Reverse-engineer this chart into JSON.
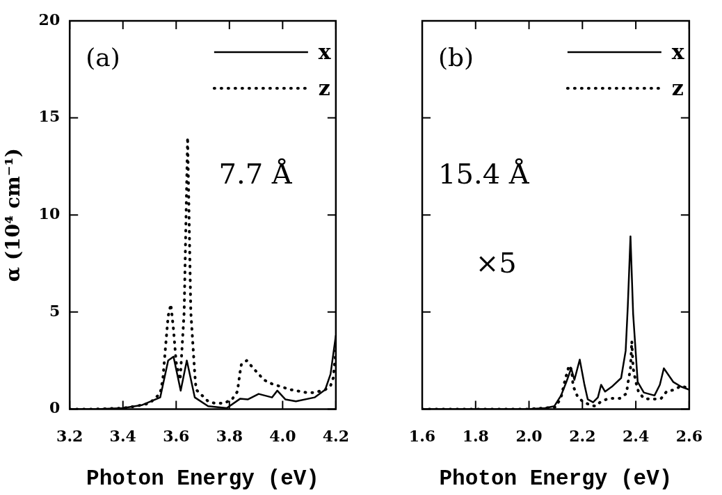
{
  "chart_data": [
    {
      "type": "line",
      "xlabel": "Photon Energy (eV)",
      "ylabel": "α (10⁴ cm⁻¹)",
      "annotations": [
        "(a)",
        "7.7 Å"
      ],
      "legend": "top right",
      "grid": false,
      "marker": "none",
      "xlim": [
        3.2,
        4.2
      ],
      "xticks": [
        3.2,
        3.4,
        3.6,
        3.8,
        {
          "value": 4,
          "label": "4.0"
        },
        4.2
      ],
      "ylim": [
        0,
        20
      ],
      "yticks": [
        0,
        5,
        10,
        15,
        20
      ],
      "series": [
        {
          "name": "x",
          "color": "#000000",
          "line_style": "solid",
          "x": [
            3.2,
            3.3,
            3.4,
            3.47,
            3.54,
            3.57,
            3.59,
            3.617,
            3.64,
            3.67,
            3.72,
            3.79,
            3.84,
            3.87,
            3.91,
            3.96,
            3.98,
            4.01,
            4.05,
            4.12,
            4.16,
            4.18,
            4.2
          ],
          "values": [
            0,
            0,
            0.05,
            0.2,
            0.6,
            2.5,
            2.7,
            0.95,
            2.5,
            0.6,
            0.15,
            0.05,
            0.53,
            0.5,
            0.78,
            0.6,
            0.95,
            0.5,
            0.4,
            0.6,
            1.0,
            1.8,
            3.8
          ]
        },
        {
          "name": "z",
          "color": "#000000",
          "line_style": "dotted",
          "x": [
            3.2,
            3.3,
            3.4,
            3.45,
            3.5,
            3.54,
            3.55,
            3.56,
            3.57,
            3.58,
            3.59,
            3.6,
            3.615,
            3.63,
            3.643,
            3.655,
            3.67,
            3.675,
            3.72,
            3.745,
            3.78,
            3.81,
            3.83,
            3.84,
            3.845,
            3.865,
            3.89,
            3.93,
            3.96,
            3.995,
            4.03,
            4.09,
            4.12,
            4.16,
            4.18,
            4.19,
            4.2
          ],
          "values": [
            0,
            0,
            0.05,
            0.15,
            0.3,
            0.8,
            1.55,
            3.2,
            4.8,
            5.4,
            4.1,
            2.4,
            1.5,
            5.0,
            14.0,
            5.0,
            1.8,
            1.0,
            0.4,
            0.3,
            0.3,
            0.5,
            0.9,
            1.9,
            2.3,
            2.5,
            2.1,
            1.5,
            1.3,
            1.15,
            1.0,
            0.85,
            0.85,
            1.0,
            1.2,
            1.6,
            3.0
          ]
        }
      ]
    },
    {
      "type": "line",
      "xlabel": "Photon Energy (eV)",
      "annotations": [
        "(b)",
        "15.4 Å",
        "×5"
      ],
      "legend": "top right",
      "grid": false,
      "marker": "none",
      "tick_labels": "x",
      "xlim": [
        1.6,
        2.6
      ],
      "xticks": [
        1.6,
        1.8,
        {
          "value": 2,
          "label": "2.0"
        },
        2.2,
        2.4,
        2.6
      ],
      "ylim": [
        0,
        20
      ],
      "yticks": [
        0,
        5,
        10,
        15,
        20
      ],
      "series": [
        {
          "name": "x",
          "color": "#000000",
          "line_style": "solid",
          "x": [
            1.6,
            1.8,
            2.0,
            2.06,
            2.095,
            2.12,
            2.14,
            2.158,
            2.17,
            2.19,
            2.207,
            2.22,
            2.24,
            2.258,
            2.27,
            2.285,
            2.31,
            2.345,
            2.362,
            2.37,
            2.38,
            2.39,
            2.407,
            2.43,
            2.47,
            2.49,
            2.505,
            2.54,
            2.57,
            2.6
          ],
          "values": [
            0,
            0,
            0,
            0.05,
            0.15,
            0.7,
            1.4,
            2.1,
            1.5,
            2.55,
            1.3,
            0.5,
            0.35,
            0.6,
            1.25,
            0.9,
            1.15,
            1.6,
            3.0,
            5.3,
            8.9,
            4.9,
            1.4,
            0.85,
            0.7,
            1.25,
            2.1,
            1.4,
            1.15,
            1.0
          ]
        },
        {
          "name": "z",
          "color": "#000000",
          "line_style": "dotted",
          "x": [
            1.6,
            1.8,
            2.0,
            2.1,
            2.12,
            2.135,
            2.15,
            2.16,
            2.165,
            2.18,
            2.2,
            2.23,
            2.25,
            2.27,
            2.3,
            2.34,
            2.365,
            2.37,
            2.38,
            2.385,
            2.39,
            2.4,
            2.41,
            2.43,
            2.46,
            2.495,
            2.515,
            2.545,
            2.57,
            2.6
          ],
          "values": [
            0,
            0,
            0,
            0.1,
            0.6,
            1.5,
            2.25,
            2.0,
            1.2,
            0.7,
            0.4,
            0.2,
            0.15,
            0.4,
            0.55,
            0.55,
            0.8,
            1.3,
            2.1,
            3.5,
            2.1,
            1.4,
            0.9,
            0.55,
            0.5,
            0.55,
            0.9,
            1.0,
            1.2,
            1.05
          ]
        }
      ]
    }
  ]
}
